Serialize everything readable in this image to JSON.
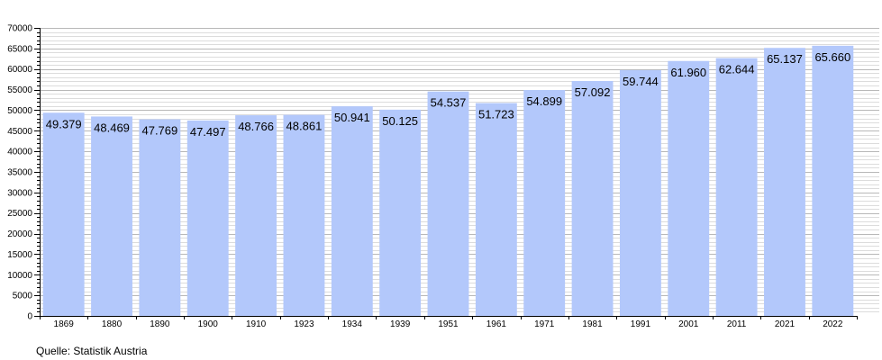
{
  "chart_data": {
    "type": "bar",
    "categories": [
      "1869",
      "1880",
      "1890",
      "1900",
      "1910",
      "1923",
      "1934",
      "1939",
      "1951",
      "1961",
      "1971",
      "1981",
      "1991",
      "2001",
      "2011",
      "2021",
      "2022"
    ],
    "values": [
      49379,
      48469,
      47769,
      47497,
      48766,
      48861,
      50941,
      50125,
      54537,
      51723,
      54899,
      57092,
      59744,
      61960,
      62644,
      65137,
      65660
    ],
    "value_labels": [
      "49.379",
      "48.469",
      "47.769",
      "47.497",
      "48.766",
      "48.861",
      "50.941",
      "50.125",
      "54.537",
      "51.723",
      "54.899",
      "57.092",
      "59.744",
      "61.960",
      "62.644",
      "65.137",
      "65.660"
    ],
    "title": "",
    "xlabel": "",
    "ylabel": "",
    "ylim": [
      0,
      70000
    ],
    "yticks": [
      0,
      5000,
      10000,
      15000,
      20000,
      25000,
      30000,
      35000,
      40000,
      45000,
      50000,
      55000,
      60000,
      65000,
      70000
    ],
    "bar_color": "#b3c8fb",
    "grid": true,
    "legend": "none"
  },
  "source_note": "Quelle: Statistik Austria"
}
